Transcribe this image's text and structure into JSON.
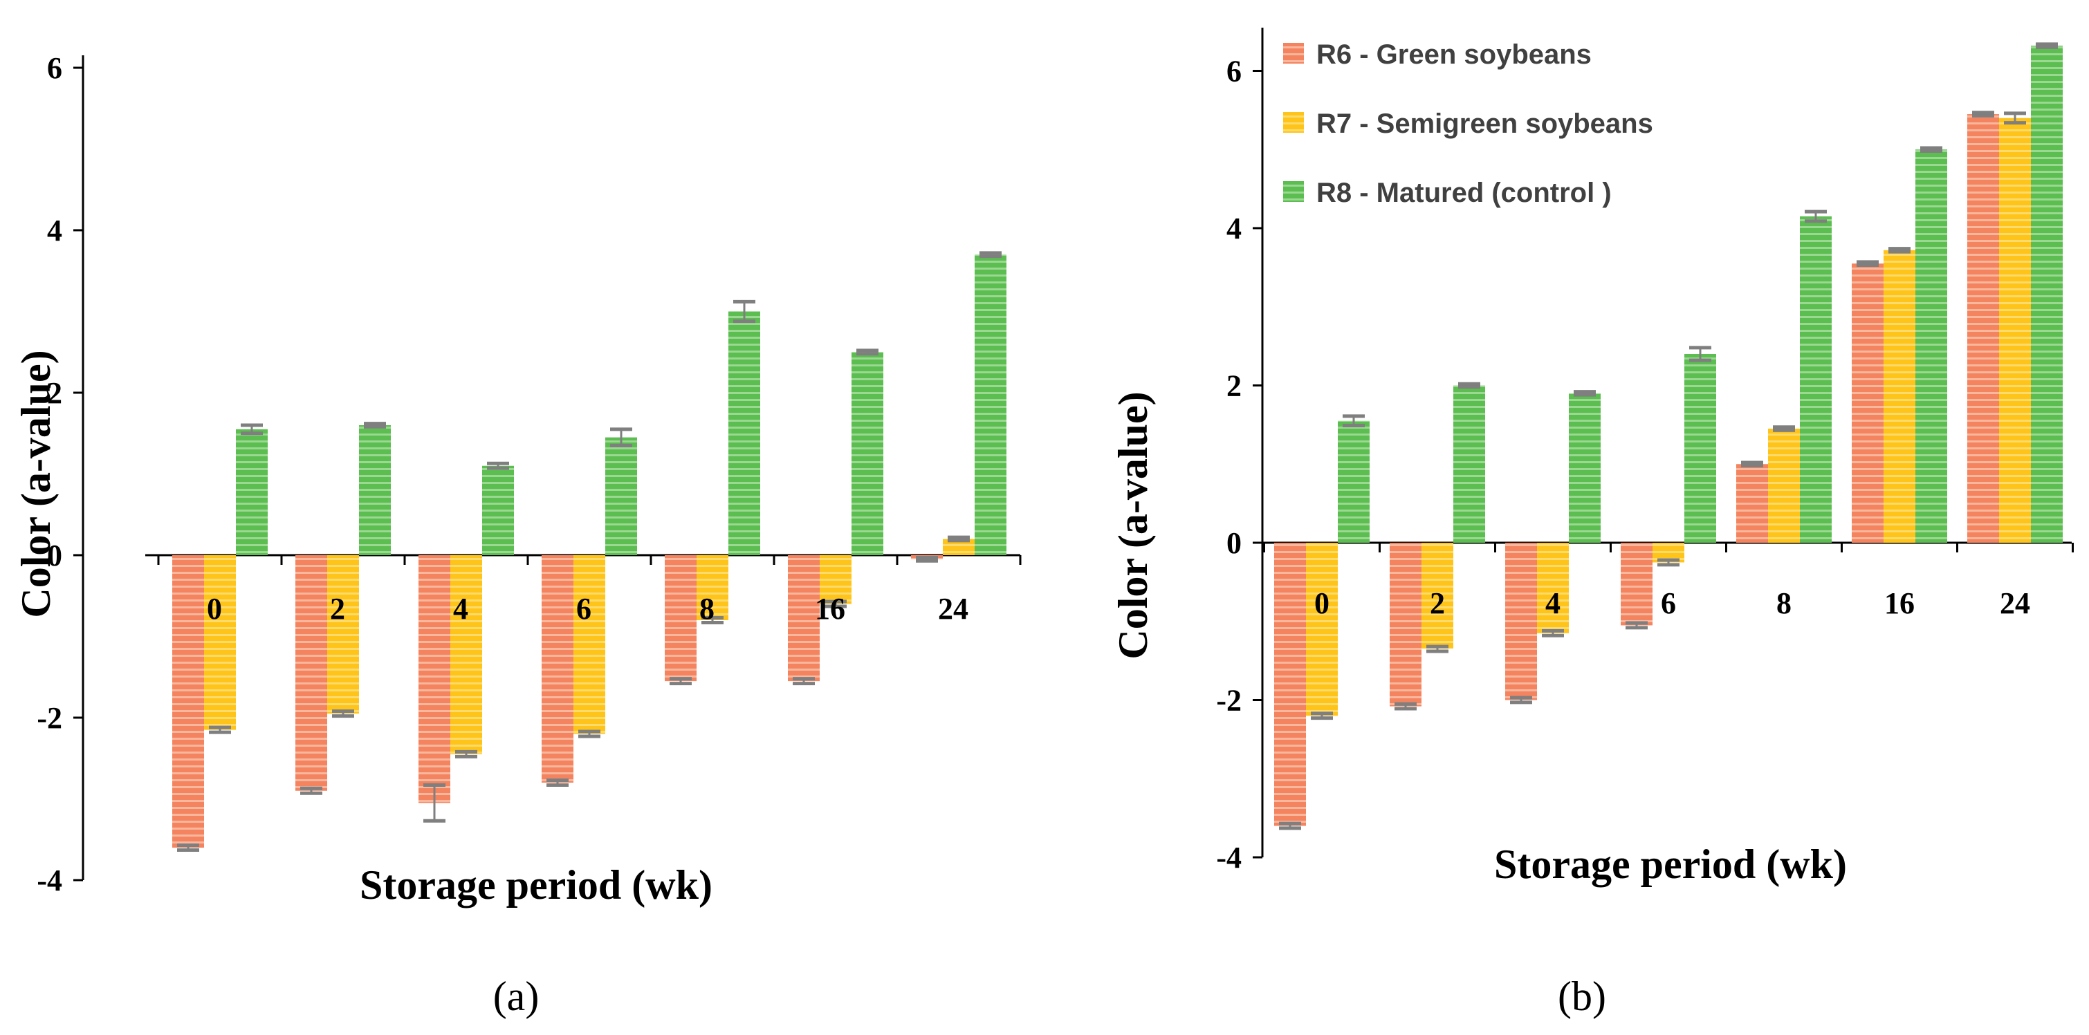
{
  "figure": {
    "panels": [
      {
        "letter": "a",
        "caption": "(a)"
      },
      {
        "letter": "b",
        "caption": "(b)"
      }
    ]
  },
  "colors": {
    "R6": "#f4845f",
    "R7": "#ffc419",
    "R8": "#5cbd50",
    "axis": "#000000",
    "error_bar": "#7f7f7f"
  },
  "chart_data": [
    {
      "type": "bar",
      "panel": "a",
      "caption": "(a)",
      "xlabel": "Storage period (wk)",
      "ylabel": "Color (a-value)",
      "categories": [
        "0",
        "2",
        "4",
        "6",
        "8",
        "16",
        "24"
      ],
      "yticks": [
        "-4",
        "-2",
        "0",
        "2",
        "4",
        "6"
      ],
      "ylim": [
        -4,
        6.5
      ],
      "grid": false,
      "legend": null,
      "series": [
        {
          "key": "R6",
          "values": [
            -3.6,
            -2.9,
            -3.05,
            -2.8,
            -1.55,
            -1.55,
            -0.05
          ],
          "errors": [
            0.03,
            0.03,
            0.22,
            0.03,
            0.03,
            0.03,
            0.02
          ]
        },
        {
          "key": "R7",
          "values": [
            -2.15,
            -1.95,
            -2.45,
            -2.2,
            -0.8,
            -0.6,
            0.2
          ],
          "errors": [
            0.03,
            0.03,
            0.03,
            0.03,
            0.03,
            0.03,
            0.02
          ]
        },
        {
          "key": "R8",
          "values": [
            1.55,
            1.6,
            1.1,
            1.45,
            3.0,
            2.5,
            3.7
          ],
          "errors": [
            0.05,
            0.02,
            0.03,
            0.1,
            0.12,
            0.02,
            0.02
          ]
        }
      ]
    },
    {
      "type": "bar",
      "panel": "b",
      "caption": "(b)",
      "xlabel": "Storage period (wk)",
      "ylabel": "Color (a-value)",
      "categories": [
        "0",
        "2",
        "4",
        "6",
        "8",
        "16",
        "24"
      ],
      "yticks": [
        "-4",
        "-2",
        "0",
        "2",
        "4",
        "6"
      ],
      "ylim": [
        -4,
        6.5
      ],
      "grid": false,
      "legend": "top-left",
      "series": [
        {
          "key": "R6",
          "name": "R6 - Green soybeans",
          "values": [
            -3.6,
            -2.08,
            -2.0,
            -1.05,
            1.0,
            3.55,
            5.45
          ],
          "errors": [
            0.03,
            0.03,
            0.03,
            0.03,
            0.02,
            0.02,
            0.02
          ]
        },
        {
          "key": "R7",
          "name": "R7 - Semigreen soybeans",
          "values": [
            -2.2,
            -1.35,
            -1.15,
            -0.25,
            1.45,
            3.72,
            5.4
          ],
          "errors": [
            0.03,
            0.03,
            0.03,
            0.03,
            0.02,
            0.02,
            0.06
          ]
        },
        {
          "key": "R8",
          "name": "R8 - Matured  (control )",
          "values": [
            1.55,
            2.0,
            1.9,
            2.4,
            4.15,
            5.0,
            6.32
          ],
          "errors": [
            0.06,
            0.02,
            0.02,
            0.08,
            0.06,
            0.02,
            0.02
          ]
        }
      ]
    }
  ]
}
